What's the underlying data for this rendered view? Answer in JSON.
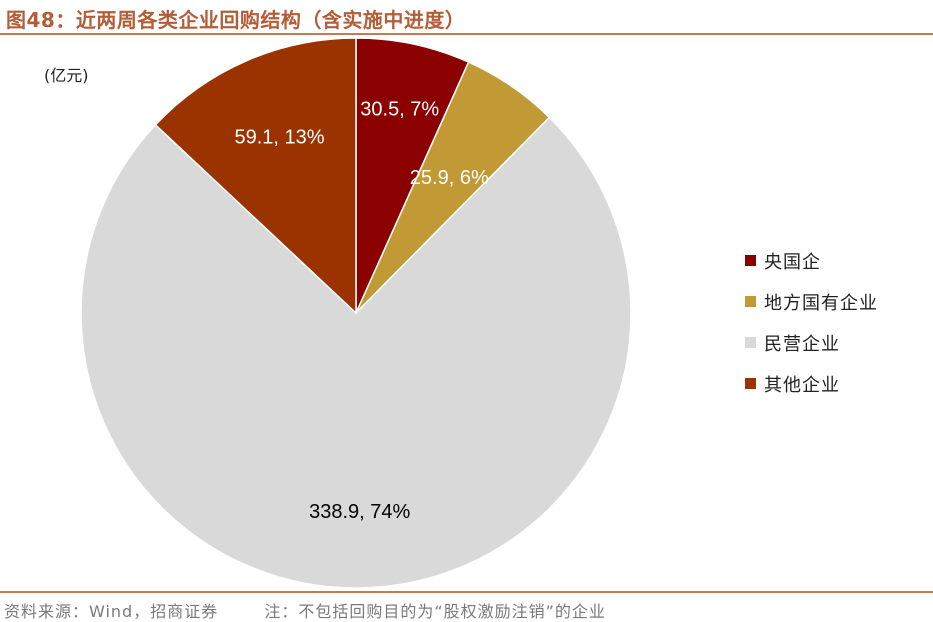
{
  "title": "图48：近两周各类企业回购结构（含实施中进度）",
  "unit_label": "(亿元)",
  "chart_data": {
    "type": "pie",
    "title": "图48：近两周各类企业回购结构（含实施中进度）",
    "unit": "亿元",
    "legend_position": "right",
    "slices": [
      {
        "name": "央国企",
        "value": 30.5,
        "percent": 7,
        "label": "30.5, 7%",
        "color": "#8b0000",
        "label_color": "#ffffff"
      },
      {
        "name": "地方国有企业",
        "value": 25.9,
        "percent": 6,
        "label": "25.9, 6%",
        "color": "#c19a35",
        "label_color": "#ffffff"
      },
      {
        "name": "民营企业",
        "value": 338.9,
        "percent": 74,
        "label": "338.9, 74%",
        "color": "#d9d9d9",
        "label_color": "#000000"
      },
      {
        "name": "其他企业",
        "value": 59.1,
        "percent": 13,
        "label": "59.1, 13%",
        "color": "#9a3300",
        "label_color": "#ffffff"
      }
    ]
  },
  "legend": [
    {
      "label": "央国企",
      "color": "#8b0000"
    },
    {
      "label": "地方国有企业",
      "color": "#c19a35"
    },
    {
      "label": "民营企业",
      "color": "#d9d9d9"
    },
    {
      "label": "其他企业",
      "color": "#9a3300"
    }
  ],
  "footer": {
    "source": "资料来源：Wind，招商证券",
    "note": "注：不包括回购目的为“股权激励注销”的企业"
  }
}
